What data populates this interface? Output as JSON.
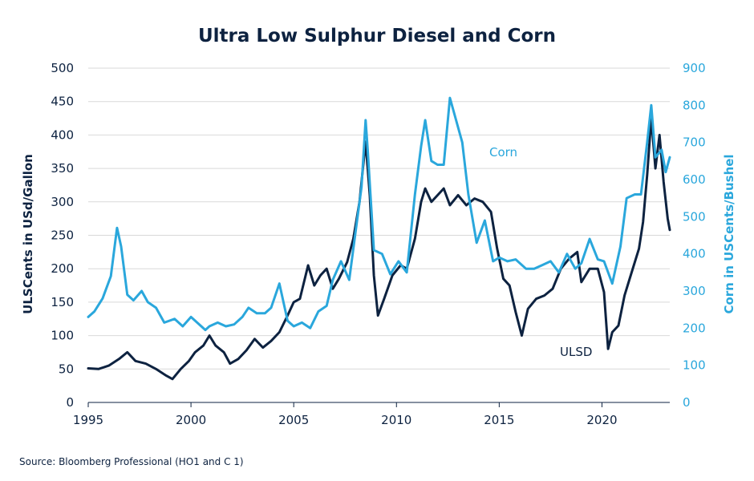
{
  "chart_data": {
    "type": "line",
    "title": "Ultra Low Sulphur Diesel and Corn",
    "source": "Source: Bloomberg Professional  (HO1 and C 1)",
    "x_ticks": [
      "1995",
      "2000",
      "2005",
      "2010",
      "2015",
      "2020"
    ],
    "xlim": [
      1995,
      2023.3
    ],
    "y_left": {
      "label": "ULSCents in USd/Gallon",
      "ticks": [
        "0",
        "50",
        "100",
        "150",
        "200",
        "250",
        "300",
        "350",
        "400",
        "450",
        "500"
      ],
      "ylim": [
        0,
        500
      ]
    },
    "y_right": {
      "label": "Corn in USCents/Bushel",
      "ticks": [
        "0",
        "100",
        "200",
        "300",
        "400",
        "500",
        "600",
        "700",
        "800",
        "900"
      ],
      "ylim": [
        0,
        900
      ]
    },
    "grid": true,
    "colors": {
      "ulsd": "#0d2240",
      "corn": "#2aa7dc",
      "grid": "#d9d9d9"
    },
    "series": [
      {
        "name": "ULSD",
        "axis": "left",
        "points": [
          [
            1995.0,
            51
          ],
          [
            1995.5,
            50
          ],
          [
            1996.0,
            55
          ],
          [
            1996.5,
            65
          ],
          [
            1996.9,
            75
          ],
          [
            1997.3,
            62
          ],
          [
            1997.8,
            58
          ],
          [
            1998.3,
            50
          ],
          [
            1998.8,
            40
          ],
          [
            1999.1,
            35
          ],
          [
            1999.5,
            50
          ],
          [
            1999.9,
            62
          ],
          [
            2000.2,
            75
          ],
          [
            2000.6,
            85
          ],
          [
            2000.9,
            100
          ],
          [
            2001.2,
            85
          ],
          [
            2001.6,
            75
          ],
          [
            2001.9,
            58
          ],
          [
            2002.3,
            65
          ],
          [
            2002.7,
            78
          ],
          [
            2003.1,
            95
          ],
          [
            2003.5,
            82
          ],
          [
            2003.9,
            92
          ],
          [
            2004.3,
            105
          ],
          [
            2004.7,
            130
          ],
          [
            2005.0,
            150
          ],
          [
            2005.3,
            155
          ],
          [
            2005.7,
            205
          ],
          [
            2006.0,
            175
          ],
          [
            2006.3,
            190
          ],
          [
            2006.6,
            200
          ],
          [
            2006.9,
            170
          ],
          [
            2007.2,
            185
          ],
          [
            2007.6,
            210
          ],
          [
            2007.9,
            245
          ],
          [
            2008.2,
            300
          ],
          [
            2008.5,
            390
          ],
          [
            2008.7,
            310
          ],
          [
            2008.9,
            190
          ],
          [
            2009.1,
            130
          ],
          [
            2009.4,
            155
          ],
          [
            2009.8,
            190
          ],
          [
            2010.2,
            205
          ],
          [
            2010.5,
            200
          ],
          [
            2010.9,
            245
          ],
          [
            2011.2,
            300
          ],
          [
            2011.4,
            320
          ],
          [
            2011.7,
            300
          ],
          [
            2012.0,
            310
          ],
          [
            2012.3,
            320
          ],
          [
            2012.6,
            295
          ],
          [
            2013.0,
            310
          ],
          [
            2013.4,
            295
          ],
          [
            2013.8,
            305
          ],
          [
            2014.2,
            300
          ],
          [
            2014.6,
            285
          ],
          [
            2014.9,
            230
          ],
          [
            2015.2,
            185
          ],
          [
            2015.5,
            175
          ],
          [
            2015.8,
            135
          ],
          [
            2016.1,
            100
          ],
          [
            2016.4,
            140
          ],
          [
            2016.8,
            155
          ],
          [
            2017.2,
            160
          ],
          [
            2017.6,
            170
          ],
          [
            2018.0,
            200
          ],
          [
            2018.4,
            215
          ],
          [
            2018.8,
            225
          ],
          [
            2019.0,
            180
          ],
          [
            2019.4,
            200
          ],
          [
            2019.8,
            200
          ],
          [
            2020.1,
            165
          ],
          [
            2020.3,
            80
          ],
          [
            2020.5,
            105
          ],
          [
            2020.8,
            115
          ],
          [
            2021.1,
            160
          ],
          [
            2021.4,
            190
          ],
          [
            2021.8,
            230
          ],
          [
            2022.0,
            270
          ],
          [
            2022.2,
            340
          ],
          [
            2022.4,
            425
          ],
          [
            2022.6,
            350
          ],
          [
            2022.8,
            400
          ],
          [
            2023.0,
            330
          ],
          [
            2023.2,
            275
          ],
          [
            2023.3,
            258
          ]
        ]
      },
      {
        "name": "Corn",
        "axis": "right",
        "points": [
          [
            1995.0,
            230
          ],
          [
            1995.3,
            245
          ],
          [
            1995.7,
            280
          ],
          [
            1996.1,
            340
          ],
          [
            1996.4,
            470
          ],
          [
            1996.6,
            420
          ],
          [
            1996.9,
            290
          ],
          [
            1997.2,
            275
          ],
          [
            1997.6,
            300
          ],
          [
            1997.9,
            270
          ],
          [
            1998.3,
            255
          ],
          [
            1998.7,
            215
          ],
          [
            1999.2,
            225
          ],
          [
            1999.6,
            205
          ],
          [
            2000.0,
            230
          ],
          [
            2000.3,
            215
          ],
          [
            2000.7,
            195
          ],
          [
            2000.9,
            205
          ],
          [
            2001.3,
            215
          ],
          [
            2001.7,
            205
          ],
          [
            2002.1,
            210
          ],
          [
            2002.5,
            230
          ],
          [
            2002.8,
            255
          ],
          [
            2003.2,
            240
          ],
          [
            2003.6,
            240
          ],
          [
            2003.9,
            255
          ],
          [
            2004.3,
            320
          ],
          [
            2004.7,
            220
          ],
          [
            2005.0,
            205
          ],
          [
            2005.4,
            215
          ],
          [
            2005.8,
            200
          ],
          [
            2006.2,
            245
          ],
          [
            2006.6,
            260
          ],
          [
            2006.9,
            330
          ],
          [
            2007.3,
            380
          ],
          [
            2007.7,
            330
          ],
          [
            2008.0,
            455
          ],
          [
            2008.3,
            580
          ],
          [
            2008.5,
            760
          ],
          [
            2008.6,
            680
          ],
          [
            2008.9,
            410
          ],
          [
            2009.3,
            400
          ],
          [
            2009.7,
            345
          ],
          [
            2010.1,
            380
          ],
          [
            2010.5,
            350
          ],
          [
            2010.9,
            560
          ],
          [
            2011.2,
            690
          ],
          [
            2011.4,
            760
          ],
          [
            2011.7,
            650
          ],
          [
            2012.0,
            640
          ],
          [
            2012.3,
            640
          ],
          [
            2012.6,
            820
          ],
          [
            2012.9,
            760
          ],
          [
            2013.2,
            700
          ],
          [
            2013.5,
            560
          ],
          [
            2013.9,
            430
          ],
          [
            2014.3,
            490
          ],
          [
            2014.7,
            380
          ],
          [
            2015.0,
            390
          ],
          [
            2015.4,
            380
          ],
          [
            2015.8,
            385
          ],
          [
            2016.3,
            360
          ],
          [
            2016.7,
            360
          ],
          [
            2017.1,
            370
          ],
          [
            2017.5,
            380
          ],
          [
            2017.9,
            350
          ],
          [
            2018.3,
            400
          ],
          [
            2018.7,
            360
          ],
          [
            2019.0,
            375
          ],
          [
            2019.4,
            440
          ],
          [
            2019.8,
            385
          ],
          [
            2020.1,
            380
          ],
          [
            2020.5,
            320
          ],
          [
            2020.9,
            420
          ],
          [
            2021.2,
            550
          ],
          [
            2021.6,
            560
          ],
          [
            2021.9,
            560
          ],
          [
            2022.2,
            700
          ],
          [
            2022.4,
            800
          ],
          [
            2022.6,
            660
          ],
          [
            2022.9,
            680
          ],
          [
            2023.1,
            620
          ],
          [
            2023.3,
            660
          ]
        ]
      }
    ],
    "annotations": [
      {
        "text": "Corn",
        "series": "Corn"
      },
      {
        "text": "ULSD",
        "series": "ULSD"
      }
    ]
  }
}
